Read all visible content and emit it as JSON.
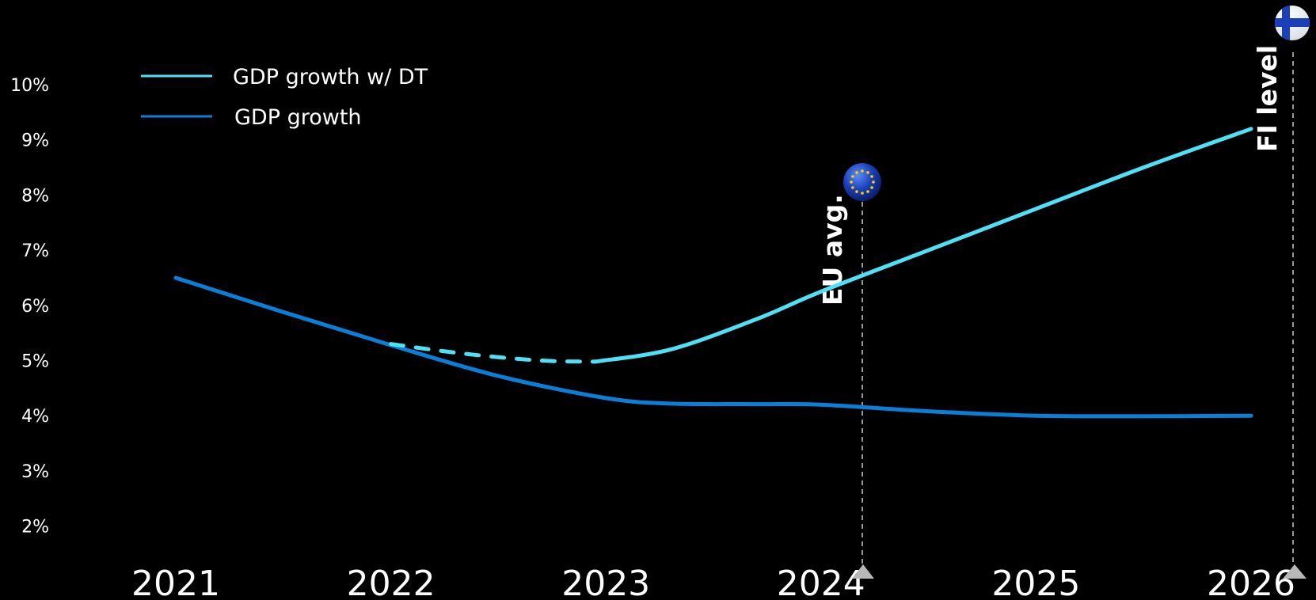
{
  "chart_data": {
    "type": "line",
    "title": "",
    "xlabel": "",
    "ylabel": "",
    "x": [
      "2021",
      "2022",
      "2023",
      "2024",
      "2025",
      "2026"
    ],
    "y_ticks": [
      "10%",
      "9%",
      "8%",
      "7%",
      "6%",
      "5%",
      "4%",
      "3%",
      "2%"
    ],
    "ylim": [
      2,
      10
    ],
    "grid": false,
    "legend_position": "top-left",
    "series": [
      {
        "name": "GDP growth w/ DT",
        "color": "#4fe0f5",
        "points": [
          [
            2022.0,
            5.3
          ],
          [
            2022.35,
            5.12
          ],
          [
            2022.7,
            5.0
          ],
          [
            2022.95,
            4.98
          ],
          [
            2023.3,
            5.2
          ],
          [
            2023.7,
            5.75
          ],
          [
            2024.0,
            6.25
          ],
          [
            2024.5,
            7.0
          ],
          [
            2025.0,
            7.75
          ],
          [
            2025.5,
            8.5
          ],
          [
            2026.0,
            9.2
          ]
        ],
        "dashed_until": 2022.95
      },
      {
        "name": "GDP growth",
        "color": "#0a7fd8",
        "points": [
          [
            2021.0,
            6.5
          ],
          [
            2021.5,
            5.88
          ],
          [
            2022.0,
            5.28
          ],
          [
            2022.5,
            4.72
          ],
          [
            2023.0,
            4.32
          ],
          [
            2023.3,
            4.22
          ],
          [
            2023.7,
            4.21
          ],
          [
            2024.0,
            4.2
          ],
          [
            2024.5,
            4.08
          ],
          [
            2025.0,
            4.0
          ],
          [
            2025.5,
            3.99
          ],
          [
            2026.0,
            4.0
          ]
        ]
      }
    ],
    "reference_lines": [
      {
        "label": "EU avg.",
        "x": 2024.2,
        "icon": "eu-flag-icon"
      },
      {
        "label": "FI level",
        "x": 2026.2,
        "icon": "finland-flag-icon"
      }
    ]
  }
}
